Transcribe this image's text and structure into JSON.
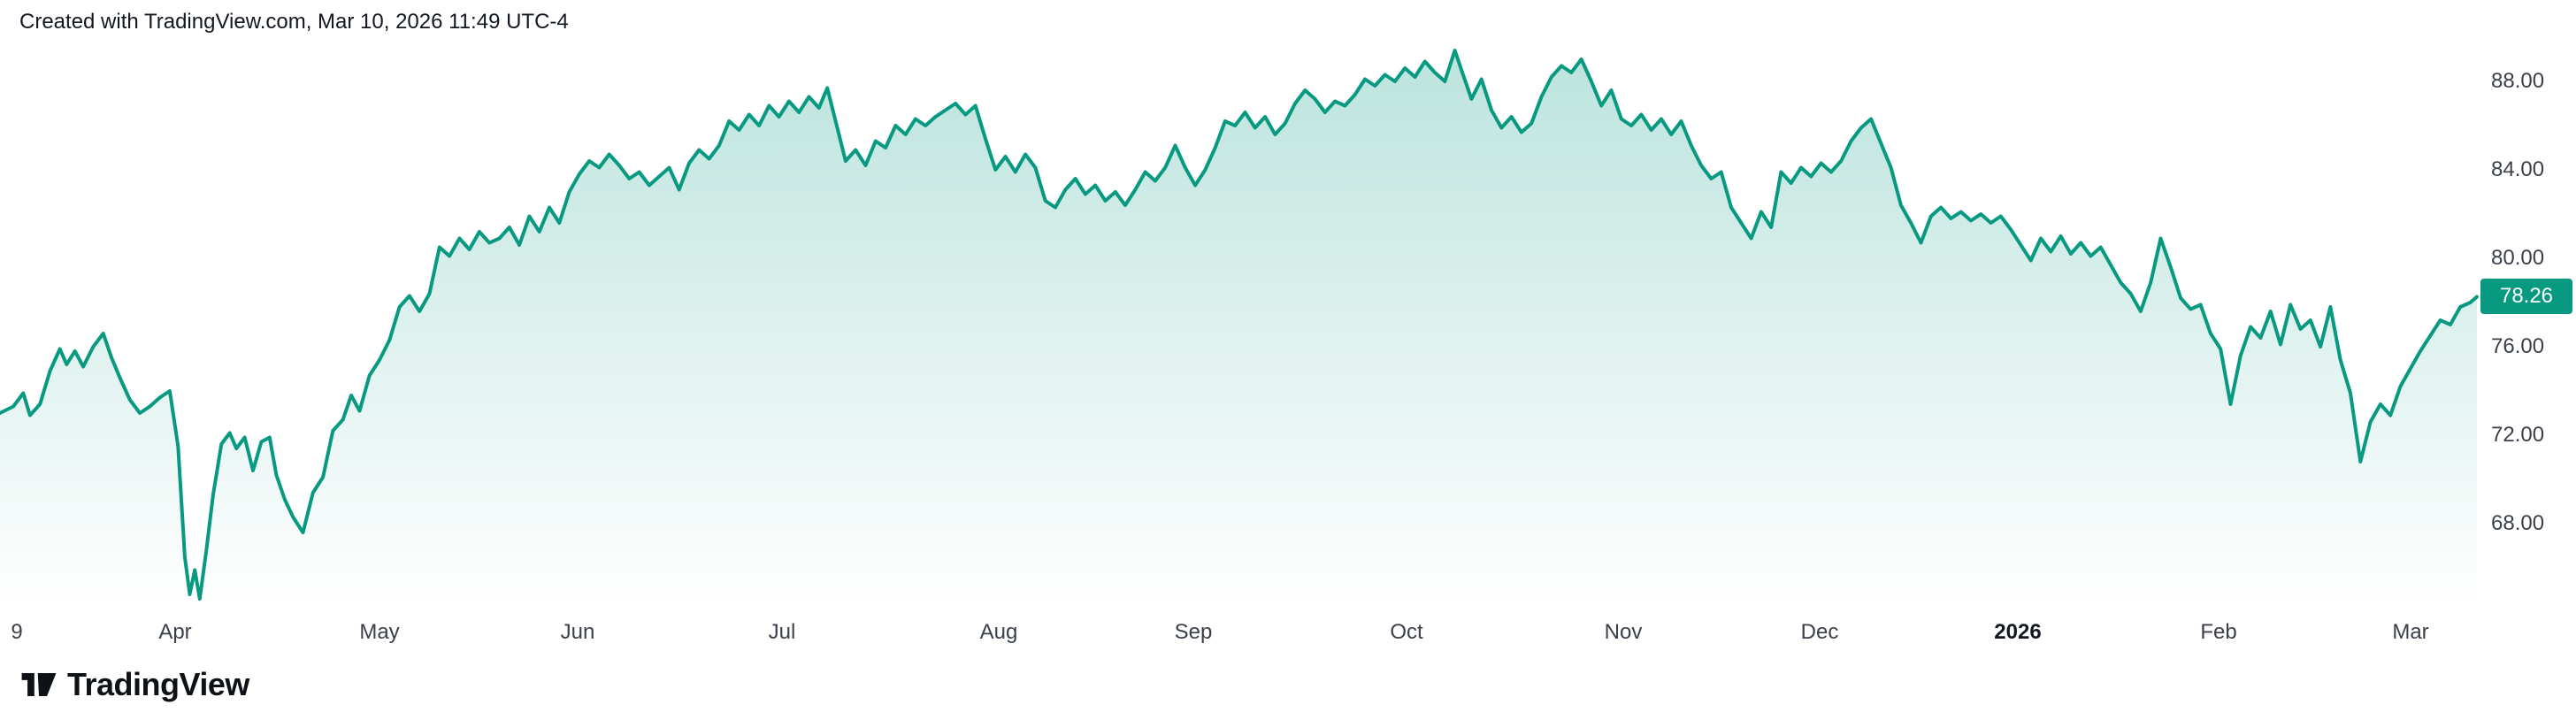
{
  "header": {
    "attribution": "Created with TradingView.com, Mar 10, 2026 11:49 UTC-4"
  },
  "footer": {
    "brand": "TradingView"
  },
  "chart_data": {
    "type": "area",
    "title": "",
    "xlabel": "",
    "ylabel": "",
    "legend": "none",
    "grid": "off",
    "x_range": [
      0,
      1488
    ],
    "y_axis_visible_range": [
      66,
      90
    ],
    "x_ticks": [
      {
        "label": "9",
        "x": 10,
        "bold": false
      },
      {
        "label": "Apr",
        "x": 105,
        "bold": false
      },
      {
        "label": "May",
        "x": 228,
        "bold": false
      },
      {
        "label": "Jun",
        "x": 347,
        "bold": false
      },
      {
        "label": "Jul",
        "x": 470,
        "bold": false
      },
      {
        "label": "Aug",
        "x": 600,
        "bold": false
      },
      {
        "label": "Sep",
        "x": 717,
        "bold": false
      },
      {
        "label": "Oct",
        "x": 845,
        "bold": false
      },
      {
        "label": "Nov",
        "x": 975,
        "bold": false
      },
      {
        "label": "Dec",
        "x": 1093,
        "bold": false
      },
      {
        "label": "2026",
        "x": 1212,
        "bold": true
      },
      {
        "label": "Feb",
        "x": 1333,
        "bold": false
      },
      {
        "label": "Mar",
        "x": 1448,
        "bold": false
      }
    ],
    "y_ticks": [
      {
        "label": "88.00",
        "value": 88
      },
      {
        "label": "84.00",
        "value": 84
      },
      {
        "label": "80.00",
        "value": 80
      },
      {
        "label": "76.00",
        "value": 76
      },
      {
        "label": "72.00",
        "value": 72
      },
      {
        "label": "68.00",
        "value": 68
      }
    ],
    "last_price": {
      "label": "78.26",
      "value": 78.26
    },
    "colors": {
      "line": "#089981",
      "badge": "#089981",
      "fill_top": "rgba(8,153,129,0.28)",
      "fill_bottom": "rgba(8,153,129,0)",
      "tick_text": "#3a3f4a",
      "header_text": "#131722"
    },
    "points": [
      [
        0,
        73.0
      ],
      [
        8,
        73.3
      ],
      [
        14,
        73.9
      ],
      [
        18,
        72.9
      ],
      [
        24,
        73.4
      ],
      [
        30,
        74.9
      ],
      [
        36,
        75.9
      ],
      [
        40,
        75.2
      ],
      [
        45,
        75.8
      ],
      [
        50,
        75.1
      ],
      [
        56,
        76.0
      ],
      [
        62,
        76.6
      ],
      [
        67,
        75.5
      ],
      [
        72,
        74.6
      ],
      [
        78,
        73.6
      ],
      [
        84,
        73.0
      ],
      [
        90,
        73.3
      ],
      [
        96,
        73.7
      ],
      [
        102,
        74.0
      ],
      [
        107,
        71.5
      ],
      [
        111,
        66.5
      ],
      [
        114,
        64.8
      ],
      [
        117,
        65.9
      ],
      [
        120,
        64.6
      ],
      [
        124,
        66.8
      ],
      [
        128,
        69.3
      ],
      [
        133,
        71.6
      ],
      [
        138,
        72.1
      ],
      [
        142,
        71.4
      ],
      [
        147,
        71.9
      ],
      [
        152,
        70.4
      ],
      [
        157,
        71.7
      ],
      [
        162,
        71.9
      ],
      [
        166,
        70.2
      ],
      [
        171,
        69.1
      ],
      [
        176,
        68.3
      ],
      [
        182,
        67.6
      ],
      [
        188,
        69.4
      ],
      [
        194,
        70.1
      ],
      [
        200,
        72.2
      ],
      [
        206,
        72.7
      ],
      [
        211,
        73.8
      ],
      [
        216,
        73.1
      ],
      [
        222,
        74.7
      ],
      [
        228,
        75.4
      ],
      [
        234,
        76.3
      ],
      [
        240,
        77.8
      ],
      [
        246,
        78.3
      ],
      [
        252,
        77.6
      ],
      [
        258,
        78.4
      ],
      [
        264,
        80.5
      ],
      [
        270,
        80.1
      ],
      [
        276,
        80.9
      ],
      [
        282,
        80.4
      ],
      [
        288,
        81.2
      ],
      [
        294,
        80.7
      ],
      [
        300,
        80.9
      ],
      [
        306,
        81.4
      ],
      [
        312,
        80.6
      ],
      [
        318,
        81.9
      ],
      [
        324,
        81.2
      ],
      [
        330,
        82.3
      ],
      [
        336,
        81.6
      ],
      [
        342,
        83.0
      ],
      [
        348,
        83.8
      ],
      [
        354,
        84.4
      ],
      [
        360,
        84.1
      ],
      [
        366,
        84.7
      ],
      [
        372,
        84.2
      ],
      [
        378,
        83.6
      ],
      [
        384,
        83.9
      ],
      [
        390,
        83.3
      ],
      [
        396,
        83.7
      ],
      [
        402,
        84.1
      ],
      [
        408,
        83.1
      ],
      [
        414,
        84.3
      ],
      [
        420,
        84.9
      ],
      [
        426,
        84.5
      ],
      [
        432,
        85.1
      ],
      [
        438,
        86.2
      ],
      [
        444,
        85.8
      ],
      [
        450,
        86.5
      ],
      [
        456,
        86.0
      ],
      [
        462,
        86.9
      ],
      [
        468,
        86.4
      ],
      [
        474,
        87.1
      ],
      [
        480,
        86.6
      ],
      [
        486,
        87.3
      ],
      [
        492,
        86.8
      ],
      [
        497,
        87.7
      ],
      [
        503,
        85.9
      ],
      [
        508,
        84.4
      ],
      [
        514,
        84.9
      ],
      [
        520,
        84.2
      ],
      [
        526,
        85.3
      ],
      [
        532,
        85.0
      ],
      [
        538,
        86.0
      ],
      [
        544,
        85.6
      ],
      [
        550,
        86.3
      ],
      [
        556,
        86.0
      ],
      [
        562,
        86.4
      ],
      [
        568,
        86.7
      ],
      [
        574,
        87.0
      ],
      [
        580,
        86.5
      ],
      [
        586,
        86.9
      ],
      [
        592,
        85.4
      ],
      [
        598,
        84.0
      ],
      [
        604,
        84.6
      ],
      [
        610,
        83.9
      ],
      [
        616,
        84.7
      ],
      [
        622,
        84.1
      ],
      [
        628,
        82.6
      ],
      [
        634,
        82.3
      ],
      [
        640,
        83.1
      ],
      [
        646,
        83.6
      ],
      [
        652,
        82.9
      ],
      [
        658,
        83.3
      ],
      [
        664,
        82.6
      ],
      [
        670,
        83.0
      ],
      [
        676,
        82.4
      ],
      [
        682,
        83.1
      ],
      [
        688,
        83.9
      ],
      [
        694,
        83.5
      ],
      [
        700,
        84.1
      ],
      [
        706,
        85.1
      ],
      [
        712,
        84.1
      ],
      [
        718,
        83.3
      ],
      [
        724,
        84.0
      ],
      [
        730,
        85.0
      ],
      [
        736,
        86.2
      ],
      [
        742,
        86.0
      ],
      [
        748,
        86.6
      ],
      [
        754,
        85.9
      ],
      [
        760,
        86.4
      ],
      [
        766,
        85.6
      ],
      [
        772,
        86.1
      ],
      [
        778,
        87.0
      ],
      [
        784,
        87.6
      ],
      [
        790,
        87.2
      ],
      [
        796,
        86.6
      ],
      [
        802,
        87.1
      ],
      [
        808,
        86.9
      ],
      [
        814,
        87.4
      ],
      [
        820,
        88.1
      ],
      [
        826,
        87.8
      ],
      [
        832,
        88.3
      ],
      [
        838,
        88.0
      ],
      [
        844,
        88.6
      ],
      [
        850,
        88.2
      ],
      [
        856,
        88.9
      ],
      [
        862,
        88.4
      ],
      [
        868,
        88.0
      ],
      [
        874,
        89.4
      ],
      [
        878,
        88.5
      ],
      [
        884,
        87.2
      ],
      [
        890,
        88.1
      ],
      [
        896,
        86.7
      ],
      [
        902,
        85.9
      ],
      [
        908,
        86.4
      ],
      [
        914,
        85.7
      ],
      [
        920,
        86.1
      ],
      [
        926,
        87.3
      ],
      [
        932,
        88.2
      ],
      [
        938,
        88.7
      ],
      [
        944,
        88.4
      ],
      [
        950,
        89.0
      ],
      [
        956,
        88.0
      ],
      [
        962,
        86.9
      ],
      [
        968,
        87.6
      ],
      [
        974,
        86.3
      ],
      [
        980,
        86.0
      ],
      [
        986,
        86.5
      ],
      [
        992,
        85.8
      ],
      [
        998,
        86.3
      ],
      [
        1004,
        85.6
      ],
      [
        1010,
        86.2
      ],
      [
        1016,
        85.1
      ],
      [
        1022,
        84.2
      ],
      [
        1028,
        83.6
      ],
      [
        1034,
        83.9
      ],
      [
        1040,
        82.3
      ],
      [
        1046,
        81.6
      ],
      [
        1052,
        80.9
      ],
      [
        1058,
        82.1
      ],
      [
        1064,
        81.4
      ],
      [
        1070,
        83.9
      ],
      [
        1076,
        83.4
      ],
      [
        1082,
        84.1
      ],
      [
        1088,
        83.7
      ],
      [
        1094,
        84.3
      ],
      [
        1100,
        83.9
      ],
      [
        1106,
        84.4
      ],
      [
        1112,
        85.3
      ],
      [
        1118,
        85.9
      ],
      [
        1124,
        86.3
      ],
      [
        1130,
        85.2
      ],
      [
        1136,
        84.1
      ],
      [
        1142,
        82.4
      ],
      [
        1148,
        81.6
      ],
      [
        1154,
        80.7
      ],
      [
        1160,
        81.9
      ],
      [
        1166,
        82.3
      ],
      [
        1172,
        81.8
      ],
      [
        1178,
        82.1
      ],
      [
        1184,
        81.7
      ],
      [
        1190,
        82.0
      ],
      [
        1196,
        81.6
      ],
      [
        1202,
        81.9
      ],
      [
        1208,
        81.3
      ],
      [
        1214,
        80.6
      ],
      [
        1220,
        79.9
      ],
      [
        1226,
        80.9
      ],
      [
        1232,
        80.3
      ],
      [
        1238,
        81.0
      ],
      [
        1244,
        80.2
      ],
      [
        1250,
        80.7
      ],
      [
        1256,
        80.1
      ],
      [
        1262,
        80.5
      ],
      [
        1268,
        79.7
      ],
      [
        1274,
        78.9
      ],
      [
        1280,
        78.4
      ],
      [
        1286,
        77.6
      ],
      [
        1292,
        78.9
      ],
      [
        1298,
        80.9
      ],
      [
        1304,
        79.6
      ],
      [
        1310,
        78.2
      ],
      [
        1316,
        77.7
      ],
      [
        1322,
        77.9
      ],
      [
        1328,
        76.6
      ],
      [
        1334,
        75.9
      ],
      [
        1340,
        73.4
      ],
      [
        1346,
        75.6
      ],
      [
        1352,
        76.9
      ],
      [
        1358,
        76.4
      ],
      [
        1364,
        77.6
      ],
      [
        1370,
        76.1
      ],
      [
        1376,
        77.9
      ],
      [
        1382,
        76.8
      ],
      [
        1388,
        77.2
      ],
      [
        1394,
        76.0
      ],
      [
        1400,
        77.8
      ],
      [
        1406,
        75.4
      ],
      [
        1412,
        73.9
      ],
      [
        1418,
        70.8
      ],
      [
        1424,
        72.6
      ],
      [
        1430,
        73.4
      ],
      [
        1436,
        72.9
      ],
      [
        1442,
        74.2
      ],
      [
        1448,
        75.0
      ],
      [
        1454,
        75.8
      ],
      [
        1460,
        76.5
      ],
      [
        1466,
        77.2
      ],
      [
        1472,
        77.0
      ],
      [
        1478,
        77.8
      ],
      [
        1484,
        78.0
      ],
      [
        1488,
        78.26
      ]
    ]
  }
}
